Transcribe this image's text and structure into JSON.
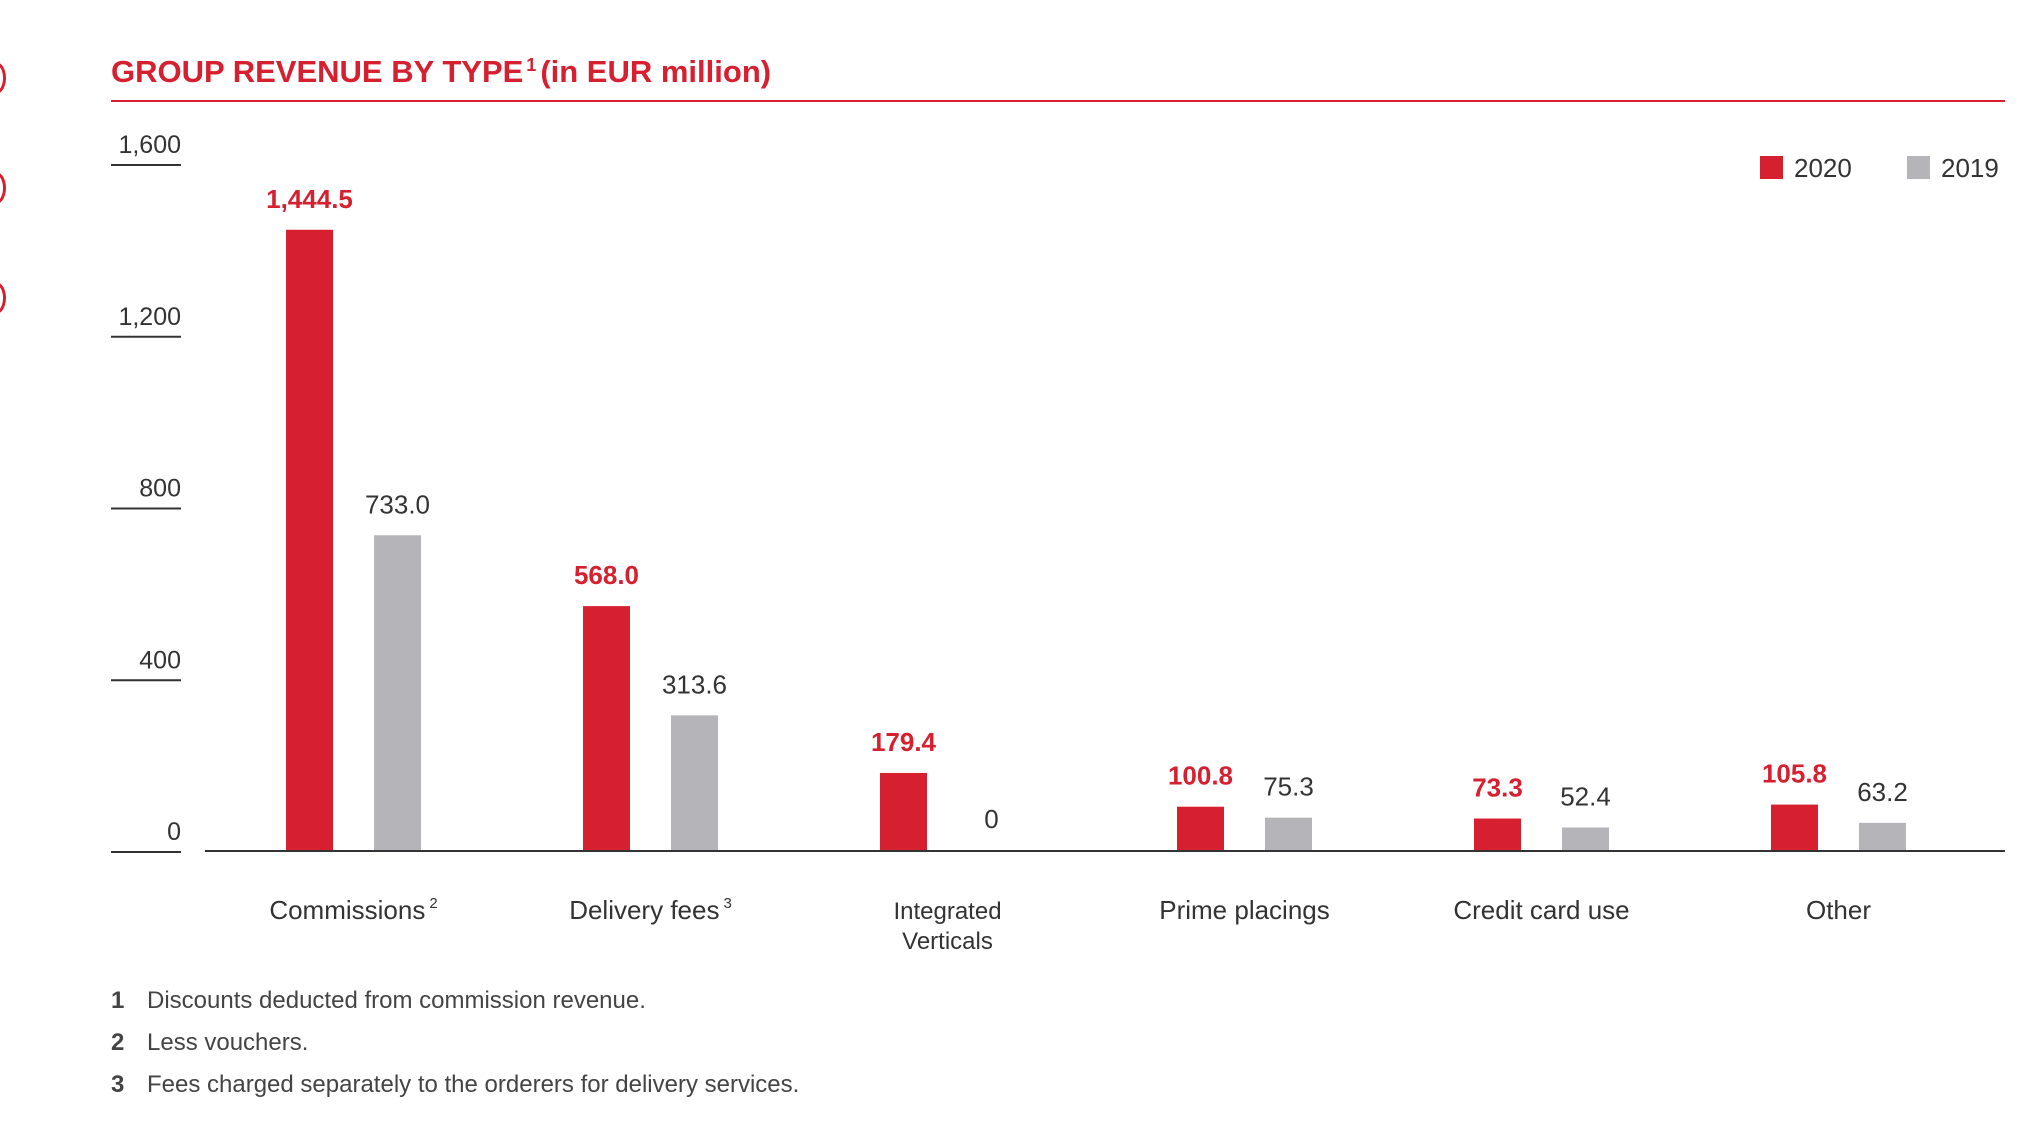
{
  "colors": {
    "accent": "#d62030",
    "series_2020": "#d62030",
    "series_2019": "#b5b4b9",
    "text": "#333333",
    "axis": "#333333"
  },
  "title": {
    "main": "GROUP REVENUE BY TYPE",
    "footnote_ref": "1",
    "unit": "(in EUR million)"
  },
  "chart_data": {
    "type": "bar",
    "title": "GROUP REVENUE BY TYPE 1 (in EUR million)",
    "xlabel": "",
    "ylabel": "",
    "ylim": [
      0,
      1600
    ],
    "yticks": [
      0,
      400,
      800,
      1200,
      1600
    ],
    "ytick_labels": [
      "0",
      "400",
      "800",
      "1,200",
      "1,600"
    ],
    "grid": false,
    "legend_position": "top-right",
    "categories": [
      {
        "label": "Commissions",
        "sup": "2"
      },
      {
        "label": "Delivery fees",
        "sup": "3"
      },
      {
        "label": "Integrated\nVerticals",
        "sup": ""
      },
      {
        "label": "Prime placings",
        "sup": ""
      },
      {
        "label": "Credit card use",
        "sup": ""
      },
      {
        "label": "Other",
        "sup": ""
      }
    ],
    "series": [
      {
        "name": "2020",
        "color": "#d62030",
        "values": [
          1444.5,
          568.0,
          179.4,
          100.8,
          73.3,
          105.8
        ],
        "labels": [
          "1,444.5",
          "568.0",
          "179.4",
          "100.8",
          "73.3",
          "105.8"
        ]
      },
      {
        "name": "2019",
        "color": "#b5b4b9",
        "values": [
          733.0,
          313.6,
          0,
          75.3,
          52.4,
          63.2
        ],
        "labels": [
          "733.0",
          "313.6",
          "0",
          "75.3",
          "52.4",
          "63.2"
        ]
      }
    ]
  },
  "footnotes": [
    {
      "num": "1",
      "text": "Discounts deducted from commission revenue."
    },
    {
      "num": "2",
      "text": "Less vouchers."
    },
    {
      "num": "3",
      "text": "Fees charged separately to the orderers for delivery services."
    }
  ]
}
